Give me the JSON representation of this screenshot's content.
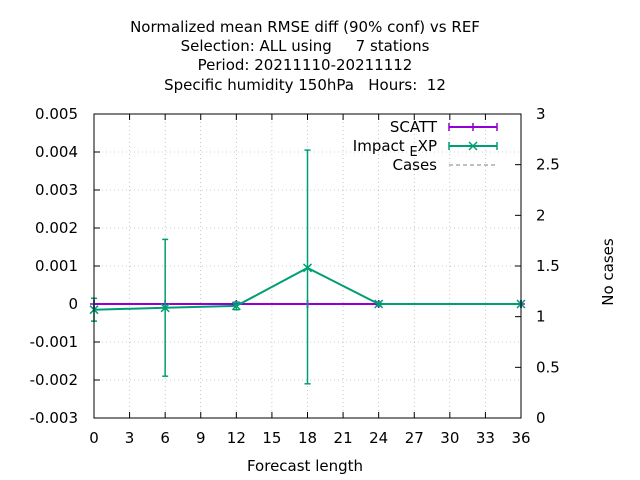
{
  "chart_data": {
    "type": "line",
    "title_lines": [
      "Normalized mean RMSE diff (90% conf) vs REF",
      "Selection: ALL using     7 stations",
      "Period: 20211110-20211112",
      "Specific humidity 150hPa   Hours:  12"
    ],
    "xlabel": "Forecast length",
    "ylabel": "",
    "y2label": "No cases",
    "xlim": [
      0,
      36
    ],
    "ylim": [
      -0.003,
      0.005
    ],
    "y2lim": [
      0,
      3
    ],
    "x_ticks": [
      "0",
      "3",
      "6",
      "9",
      "12",
      "15",
      "18",
      "21",
      "24",
      "27",
      "30",
      "33",
      "36"
    ],
    "y_ticks": [
      "-0.003",
      "-0.002",
      "-0.001",
      "0",
      "0.001",
      "0.002",
      "0.003",
      "0.004",
      "0.005"
    ],
    "y2_ticks": [
      "0",
      "0.5",
      "1",
      "1.5",
      "2",
      "2.5",
      "3"
    ],
    "grid": true,
    "legend_position": "top-right",
    "series": [
      {
        "name": "SCATT",
        "color": "#9400d3",
        "marker": "plus",
        "x": [
          0,
          6,
          12,
          18,
          24,
          36
        ],
        "y": [
          0,
          0,
          0,
          0,
          0,
          0
        ],
        "err_low": [
          0,
          0,
          0,
          0,
          0,
          0
        ],
        "err_high": [
          0,
          0,
          0,
          0,
          0,
          0
        ]
      },
      {
        "name": "Impact",
        "name_sub": "E",
        "name_suffix": "XP",
        "color": "#009e73",
        "marker": "x",
        "x": [
          0,
          6,
          12,
          18,
          24,
          36
        ],
        "y": [
          -0.00015,
          -0.0001,
          -5e-05,
          0.00095,
          0,
          0
        ],
        "err_low": [
          -0.00045,
          -0.0019,
          -0.00015,
          -0.0021,
          -5e-05,
          0
        ],
        "err_high": [
          0.00015,
          0.0017,
          5e-05,
          0.00405,
          5e-05,
          0
        ]
      },
      {
        "name": "Cases",
        "color": "#808080",
        "dash": true,
        "x": [],
        "y": []
      }
    ]
  }
}
